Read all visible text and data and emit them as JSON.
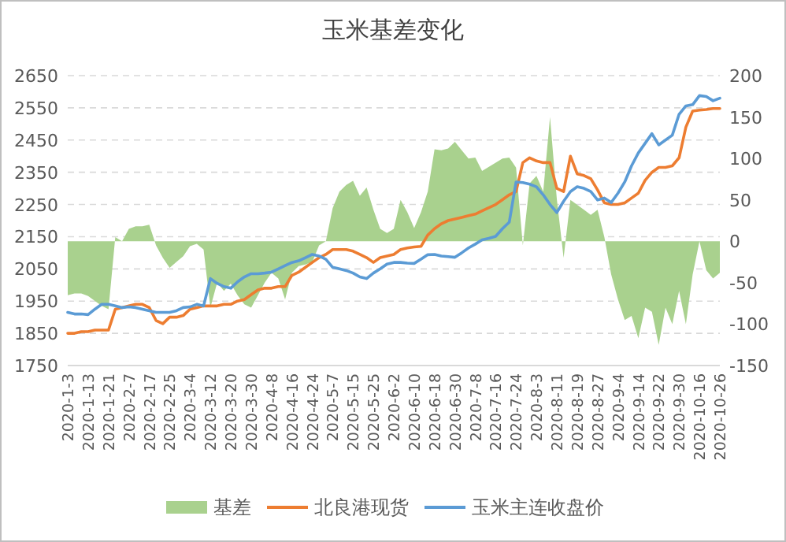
{
  "chart_data": {
    "type": "line",
    "title": "玉米基差变化",
    "categories": [
      "2020-1-3",
      null,
      null,
      "2020-1-13",
      null,
      null,
      "2020-1-21",
      null,
      null,
      "2020-2-7",
      null,
      null,
      "2020-2-17",
      null,
      null,
      "2020-2-25",
      null,
      null,
      "2020-3-4",
      null,
      null,
      "2020-3-12",
      null,
      null,
      "2020-3-20",
      null,
      null,
      "2020-3-30",
      null,
      null,
      "2020-4-8",
      null,
      null,
      "2020-4-16",
      null,
      null,
      "2020-4-24",
      null,
      null,
      "2020-5-7",
      null,
      null,
      "2020-5-15",
      null,
      null,
      "2020-5-25",
      null,
      null,
      "2020-6-2",
      null,
      null,
      "2020-6-10",
      null,
      null,
      "2020-6-18",
      null,
      null,
      "2020-6-30",
      null,
      null,
      "2020-7-8",
      null,
      null,
      "2020-7-16",
      null,
      null,
      "2020-7-24",
      null,
      null,
      "2020-8-3",
      null,
      null,
      "2020-8-11",
      null,
      null,
      "2020-8-19",
      null,
      null,
      "2020-8-27",
      null,
      null,
      "2020-9-4",
      null,
      null,
      "2020-9-14",
      null,
      null,
      "2020-9-22",
      null,
      null,
      "2020-9-30",
      null,
      null,
      "2020-10-16",
      null,
      null,
      "2020-10-26"
    ],
    "series": [
      {
        "name": "基差",
        "type": "area",
        "axis": "y2",
        "color": "#a9d18e",
        "values": [
          -65,
          -63,
          -63,
          -66,
          -72,
          -78,
          -82,
          5,
          0,
          15,
          18,
          18,
          20,
          -5,
          -20,
          -32,
          -25,
          -18,
          -6,
          -3,
          -10,
          -80,
          -50,
          -60,
          -51,
          -65,
          -76,
          -80,
          -65,
          -50,
          -38,
          -45,
          -70,
          -38,
          -30,
          -28,
          -25,
          -5,
          0,
          40,
          60,
          68,
          73,
          55,
          65,
          38,
          15,
          10,
          15,
          50,
          35,
          16,
          35,
          60,
          111,
          110,
          112,
          120,
          110,
          100,
          101,
          85,
          90,
          95,
          100,
          101,
          89,
          -5,
          70,
          79,
          60,
          150,
          51,
          -20,
          50,
          44,
          38,
          32,
          38,
          5,
          -40,
          -70,
          -95,
          -90,
          -117,
          -80,
          -85,
          -125,
          -80,
          -100,
          -60,
          -100,
          -40,
          0,
          -35,
          -45,
          -38
        ]
      },
      {
        "name": "北良港现货",
        "color": "#ed7d31",
        "values": [
          1850,
          1850,
          1855,
          1855,
          1860,
          1860,
          1860,
          1925,
          1930,
          1935,
          1940,
          1940,
          1930,
          1890,
          1880,
          1900,
          1900,
          1905,
          1925,
          1930,
          1935,
          1935,
          1935,
          1940,
          1940,
          1950,
          1955,
          1970,
          1985,
          1990,
          1990,
          1995,
          1995,
          2030,
          2040,
          2055,
          2070,
          2085,
          2095,
          2110,
          2110,
          2110,
          2105,
          2095,
          2085,
          2070,
          2085,
          2090,
          2095,
          2110,
          2115,
          2118,
          2120,
          2155,
          2175,
          2190,
          2200,
          2205,
          2210,
          2215,
          2220,
          2230,
          2240,
          2250,
          2265,
          2280,
          2290,
          2380,
          2395,
          2385,
          2380,
          2380,
          2300,
          2290,
          2400,
          2345,
          2340,
          2330,
          2295,
          2255,
          2250,
          2250,
          2255,
          2270,
          2285,
          2325,
          2350,
          2365,
          2365,
          2370,
          2395,
          2490,
          2540,
          2543,
          2545,
          2548,
          2548
        ]
      },
      {
        "name": "玉米主连收盘价",
        "color": "#5b9bd5",
        "values": [
          1915,
          1910,
          1910,
          1908,
          1925,
          1940,
          1940,
          1935,
          1930,
          1932,
          1930,
          1925,
          1920,
          1915,
          1915,
          1915,
          1920,
          1930,
          1932,
          1940,
          1935,
          2020,
          2005,
          1995,
          1990,
          2010,
          2025,
          2035,
          2035,
          2037,
          2040,
          2050,
          2060,
          2070,
          2075,
          2085,
          2095,
          2090,
          2080,
          2055,
          2050,
          2045,
          2037,
          2025,
          2020,
          2037,
          2050,
          2065,
          2070,
          2070,
          2068,
          2067,
          2080,
          2094,
          2095,
          2090,
          2088,
          2086,
          2100,
          2115,
          2127,
          2140,
          2145,
          2151,
          2175,
          2195,
          2320,
          2318,
          2313,
          2305,
          2280,
          2250,
          2225,
          2260,
          2290,
          2305,
          2300,
          2290,
          2264,
          2270,
          2256,
          2285,
          2320,
          2370,
          2410,
          2440,
          2470,
          2435,
          2450,
          2465,
          2530,
          2556,
          2560,
          2588,
          2585,
          2572,
          2580
        ]
      }
    ],
    "ylim": [
      1750,
      2650
    ],
    "yticks": [
      1750,
      1850,
      1950,
      2050,
      2150,
      2250,
      2350,
      2450,
      2550,
      2650
    ],
    "y2lim": [
      -150,
      200
    ],
    "y2ticks": [
      -150,
      -100,
      -50,
      0,
      50,
      100,
      150,
      200
    ],
    "grid": "y",
    "legend": "bottom"
  }
}
